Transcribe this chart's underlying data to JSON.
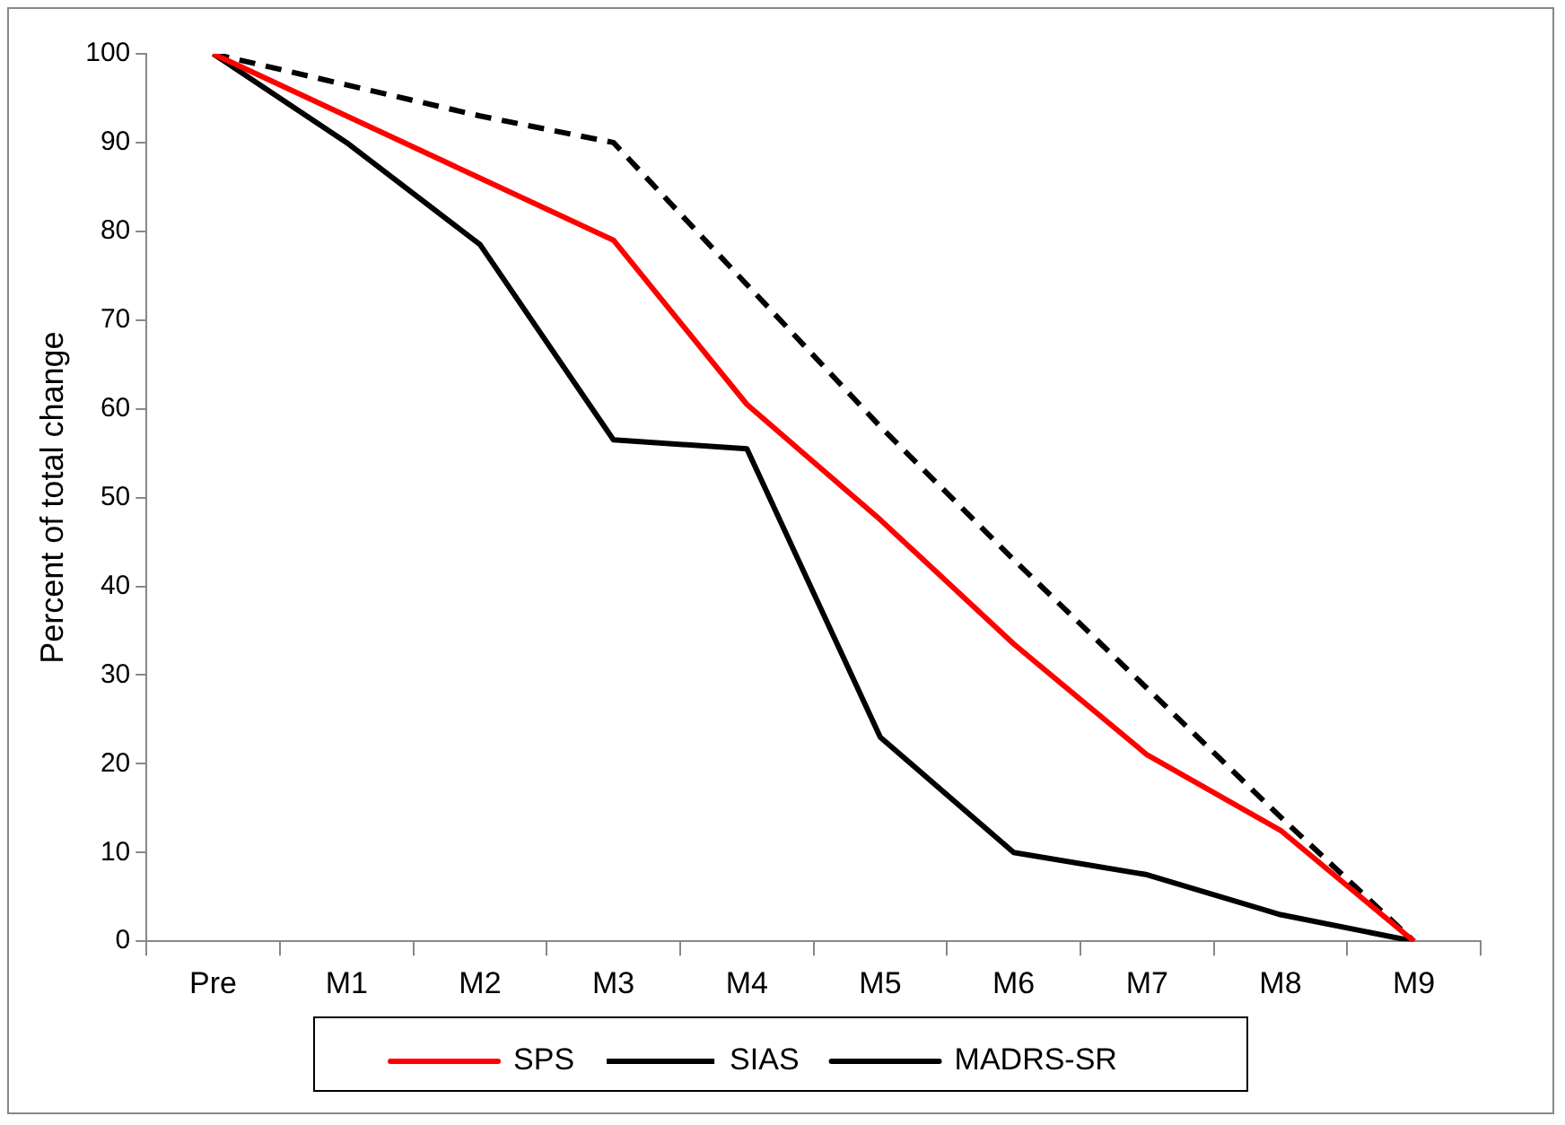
{
  "chart_data": {
    "type": "line",
    "ylabel": "Percent of total change",
    "categories": [
      "Pre",
      "M1",
      "M2",
      "M3",
      "M4",
      "M5",
      "M6",
      "M7",
      "M8",
      "M9"
    ],
    "series": [
      {
        "name": "SPS",
        "color": "#ff0000",
        "line_style": "solid",
        "values": [
          100,
          93,
          86,
          79,
          60.5,
          47.5,
          33.5,
          21,
          12.5,
          0
        ]
      },
      {
        "name": "SIAS",
        "color": "#000000",
        "line_style": "dashed",
        "values": [
          100,
          96.5,
          93,
          90,
          74,
          58,
          43,
          28.5,
          14,
          0
        ]
      },
      {
        "name": "MADRS-SR",
        "color": "#000000",
        "line_style": "solid",
        "values": [
          100,
          90,
          78.5,
          56.5,
          55.5,
          23,
          10,
          7.5,
          3,
          0
        ]
      }
    ],
    "ylim": [
      0,
      100
    ],
    "yticks": [
      0,
      10,
      20,
      30,
      40,
      50,
      60,
      70,
      80,
      90,
      100
    ],
    "grid": false,
    "legend": "bottom",
    "marker": "none"
  }
}
